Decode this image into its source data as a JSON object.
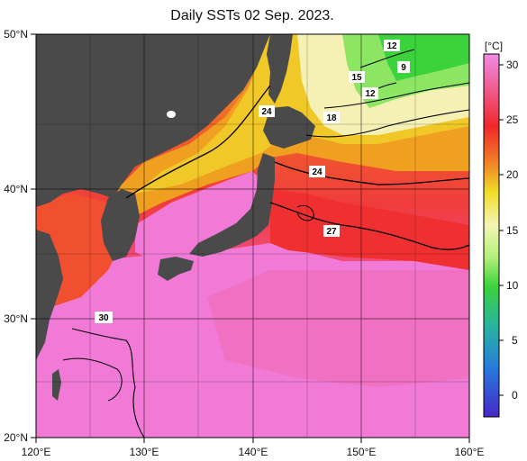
{
  "title": "Daily SSTs 02 Sep. 2023.",
  "lon_ticks": [
    "120°E",
    "130°E",
    "140°E",
    "150°E",
    "160°E"
  ],
  "lat_ticks": [
    "50°N",
    "40°N",
    "30°N",
    "20°N"
  ],
  "colorbar": {
    "unit": "[°C]",
    "ticks": [
      "30",
      "25",
      "20",
      "15",
      "10",
      "5",
      "0"
    ],
    "gradient": [
      "#f08ce6",
      "#f05a8c",
      "#f02828",
      "#f08228",
      "#f0dc28",
      "#f5f5b4",
      "#b4f07c",
      "#3cd23c",
      "#28b4a0",
      "#2878dc",
      "#4628c8"
    ]
  },
  "colors": {
    "land": "#4a4a4a",
    "frame": "#000000"
  },
  "contour_labels": [
    "12",
    "9",
    "15",
    "12",
    "18",
    "24",
    "24",
    "27",
    "30"
  ]
}
